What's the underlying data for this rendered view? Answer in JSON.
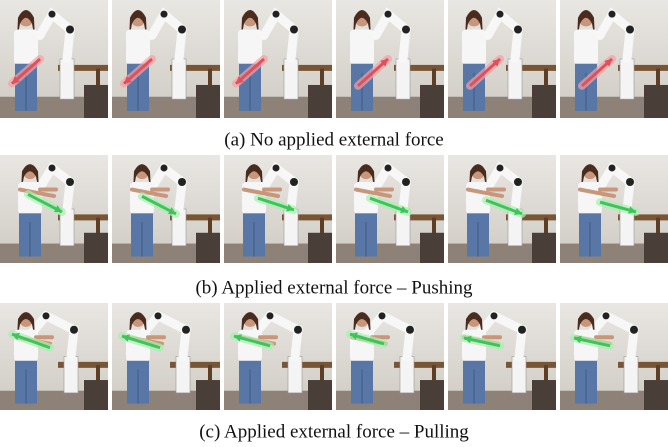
{
  "figure": {
    "captions": [
      "(a) No applied external force",
      "(b) Applied external force – Pushing",
      "(c) Applied external force – Pulling"
    ]
  }
}
